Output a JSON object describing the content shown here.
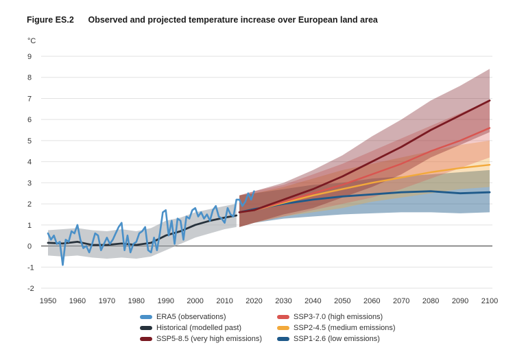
{
  "figure": {
    "number": "Figure ES.2",
    "title": "Observed and projected temperature increase over European land area"
  },
  "chart_data": {
    "type": "line",
    "title": "Observed and projected temperature increase over European land area",
    "ylabel": "°C",
    "xlabel": "",
    "xlim": [
      1950,
      2100
    ],
    "ylim": [
      -2,
      9
    ],
    "x_ticks": [
      1950,
      1960,
      1970,
      1980,
      1990,
      2000,
      2010,
      2020,
      2030,
      2040,
      2050,
      2060,
      2070,
      2080,
      2090,
      2100
    ],
    "y_ticks": [
      -2,
      -1,
      0,
      1,
      2,
      3,
      4,
      5,
      6,
      7,
      8,
      9
    ],
    "grid": "horizontal",
    "legend_position": "bottom",
    "colors": {
      "era5": "#4a90c8",
      "historical": "#27323c",
      "ssp585": "#7a1a22",
      "ssp370": "#d95550",
      "ssp245": "#f2a93b",
      "ssp126": "#1f5a8a",
      "historical_band": "#9da3a8"
    },
    "series": [
      {
        "key": "era5",
        "name": "ERA5 (observations)",
        "x": [
          1950,
          1951,
          1952,
          1953,
          1954,
          1955,
          1956,
          1957,
          1958,
          1959,
          1960,
          1961,
          1962,
          1963,
          1964,
          1965,
          1966,
          1967,
          1968,
          1969,
          1970,
          1971,
          1972,
          1973,
          1974,
          1975,
          1976,
          1977,
          1978,
          1979,
          1980,
          1981,
          1982,
          1983,
          1984,
          1985,
          1986,
          1987,
          1988,
          1989,
          1990,
          1991,
          1992,
          1993,
          1994,
          1995,
          1996,
          1997,
          1998,
          1999,
          2000,
          2001,
          2002,
          2003,
          2004,
          2005,
          2006,
          2007,
          2008,
          2009,
          2010,
          2011,
          2012,
          2013,
          2014,
          2015,
          2016,
          2017,
          2018,
          2019,
          2020
        ],
        "y": [
          0.6,
          0.3,
          0.5,
          0.1,
          0.2,
          -0.9,
          0.3,
          0.2,
          0.7,
          0.6,
          1.0,
          0.3,
          -0.1,
          0.0,
          -0.3,
          0.1,
          0.6,
          0.5,
          -0.2,
          0.1,
          0.4,
          0.1,
          0.3,
          0.6,
          0.9,
          1.1,
          -0.2,
          0.5,
          -0.3,
          0.1,
          0.2,
          0.6,
          0.7,
          0.9,
          -0.2,
          -0.3,
          0.4,
          -0.2,
          0.6,
          1.6,
          1.7,
          0.5,
          1.2,
          0.1,
          1.3,
          1.2,
          0.3,
          1.4,
          1.3,
          1.7,
          1.8,
          1.4,
          1.6,
          1.3,
          1.5,
          1.2,
          1.7,
          1.9,
          1.4,
          1.3,
          1.1,
          1.8,
          1.5,
          1.4,
          2.2,
          2.2,
          1.9,
          2.1,
          2.5,
          2.2,
          2.6
        ]
      },
      {
        "key": "historical",
        "name": "Historical (modelled past)",
        "x": [
          1950,
          1955,
          1960,
          1965,
          1970,
          1975,
          1980,
          1985,
          1990,
          1995,
          2000,
          2005,
          2010,
          2014
        ],
        "y": [
          0.15,
          0.12,
          0.2,
          0.05,
          0.05,
          0.12,
          0.05,
          0.15,
          0.5,
          0.7,
          1.0,
          1.2,
          1.35,
          1.45
        ],
        "band_lower": [
          -0.45,
          -0.5,
          -0.45,
          -0.55,
          -0.6,
          -0.55,
          -0.6,
          -0.5,
          -0.2,
          0.1,
          0.4,
          0.6,
          0.8,
          0.9
        ],
        "band_upper": [
          0.75,
          0.8,
          0.85,
          0.75,
          0.7,
          0.8,
          0.7,
          0.85,
          1.2,
          1.35,
          1.6,
          1.75,
          1.9,
          2.0
        ]
      },
      {
        "key": "ssp585",
        "name": "SSP5-8.5 (very high emissions)",
        "x": [
          2015,
          2020,
          2030,
          2040,
          2050,
          2060,
          2070,
          2080,
          2090,
          2100
        ],
        "y": [
          1.6,
          1.7,
          2.2,
          2.7,
          3.3,
          4.0,
          4.7,
          5.5,
          6.2,
          6.9
        ],
        "band_lower": [
          0.9,
          1.1,
          1.5,
          1.8,
          2.3,
          2.8,
          3.4,
          4.2,
          4.8,
          5.4
        ],
        "band_upper": [
          2.4,
          2.6,
          3.0,
          3.6,
          4.3,
          5.2,
          6.0,
          6.9,
          7.6,
          8.4
        ]
      },
      {
        "key": "ssp370",
        "name": "SSP3-7.0 (high emissions)",
        "x": [
          2015,
          2020,
          2030,
          2040,
          2050,
          2060,
          2070,
          2080,
          2090,
          2100
        ],
        "y": [
          1.6,
          1.7,
          2.1,
          2.5,
          2.9,
          3.4,
          3.9,
          4.5,
          5.0,
          5.6
        ],
        "band_lower": [
          0.9,
          1.1,
          1.4,
          1.7,
          2.0,
          2.3,
          2.7,
          3.2,
          3.7,
          4.2
        ],
        "band_upper": [
          2.4,
          2.6,
          2.9,
          3.4,
          3.9,
          4.5,
          5.1,
          5.7,
          6.3,
          6.9
        ]
      },
      {
        "key": "ssp245",
        "name": "SSP2-4.5 (medium emissions)",
        "x": [
          2015,
          2020,
          2030,
          2040,
          2050,
          2060,
          2070,
          2080,
          2090,
          2100
        ],
        "y": [
          1.6,
          1.7,
          2.05,
          2.4,
          2.7,
          3.0,
          3.25,
          3.5,
          3.7,
          3.85
        ],
        "band_lower": [
          0.9,
          1.1,
          1.4,
          1.6,
          1.8,
          2.1,
          2.3,
          2.5,
          2.7,
          2.8
        ],
        "band_upper": [
          2.4,
          2.5,
          2.8,
          3.2,
          3.6,
          3.9,
          4.2,
          4.5,
          4.8,
          5.0
        ]
      },
      {
        "key": "ssp126",
        "name": "SSP1-2.6 (low emissions)",
        "x": [
          2015,
          2020,
          2030,
          2040,
          2050,
          2060,
          2070,
          2080,
          2090,
          2100
        ],
        "y": [
          1.6,
          1.75,
          2.0,
          2.2,
          2.35,
          2.45,
          2.55,
          2.6,
          2.5,
          2.55
        ],
        "band_lower": [
          0.9,
          1.1,
          1.3,
          1.4,
          1.5,
          1.55,
          1.6,
          1.6,
          1.55,
          1.6
        ],
        "band_upper": [
          2.4,
          2.5,
          2.7,
          2.9,
          3.0,
          3.2,
          3.3,
          3.4,
          3.5,
          3.6
        ]
      }
    ]
  },
  "legend": [
    {
      "key": "era5",
      "label": "ERA5 (observations)"
    },
    {
      "key": "ssp370",
      "label": "SSP3-7.0 (high emissions)"
    },
    {
      "key": "historical",
      "label": "Historical (modelled past)"
    },
    {
      "key": "ssp245",
      "label": "SSP2-4.5 (medium emissions)"
    },
    {
      "key": "ssp585",
      "label": "SSP5-8.5 (very high emissions)"
    },
    {
      "key": "ssp126",
      "label": "SSP1-2.6 (low emissions)"
    }
  ]
}
